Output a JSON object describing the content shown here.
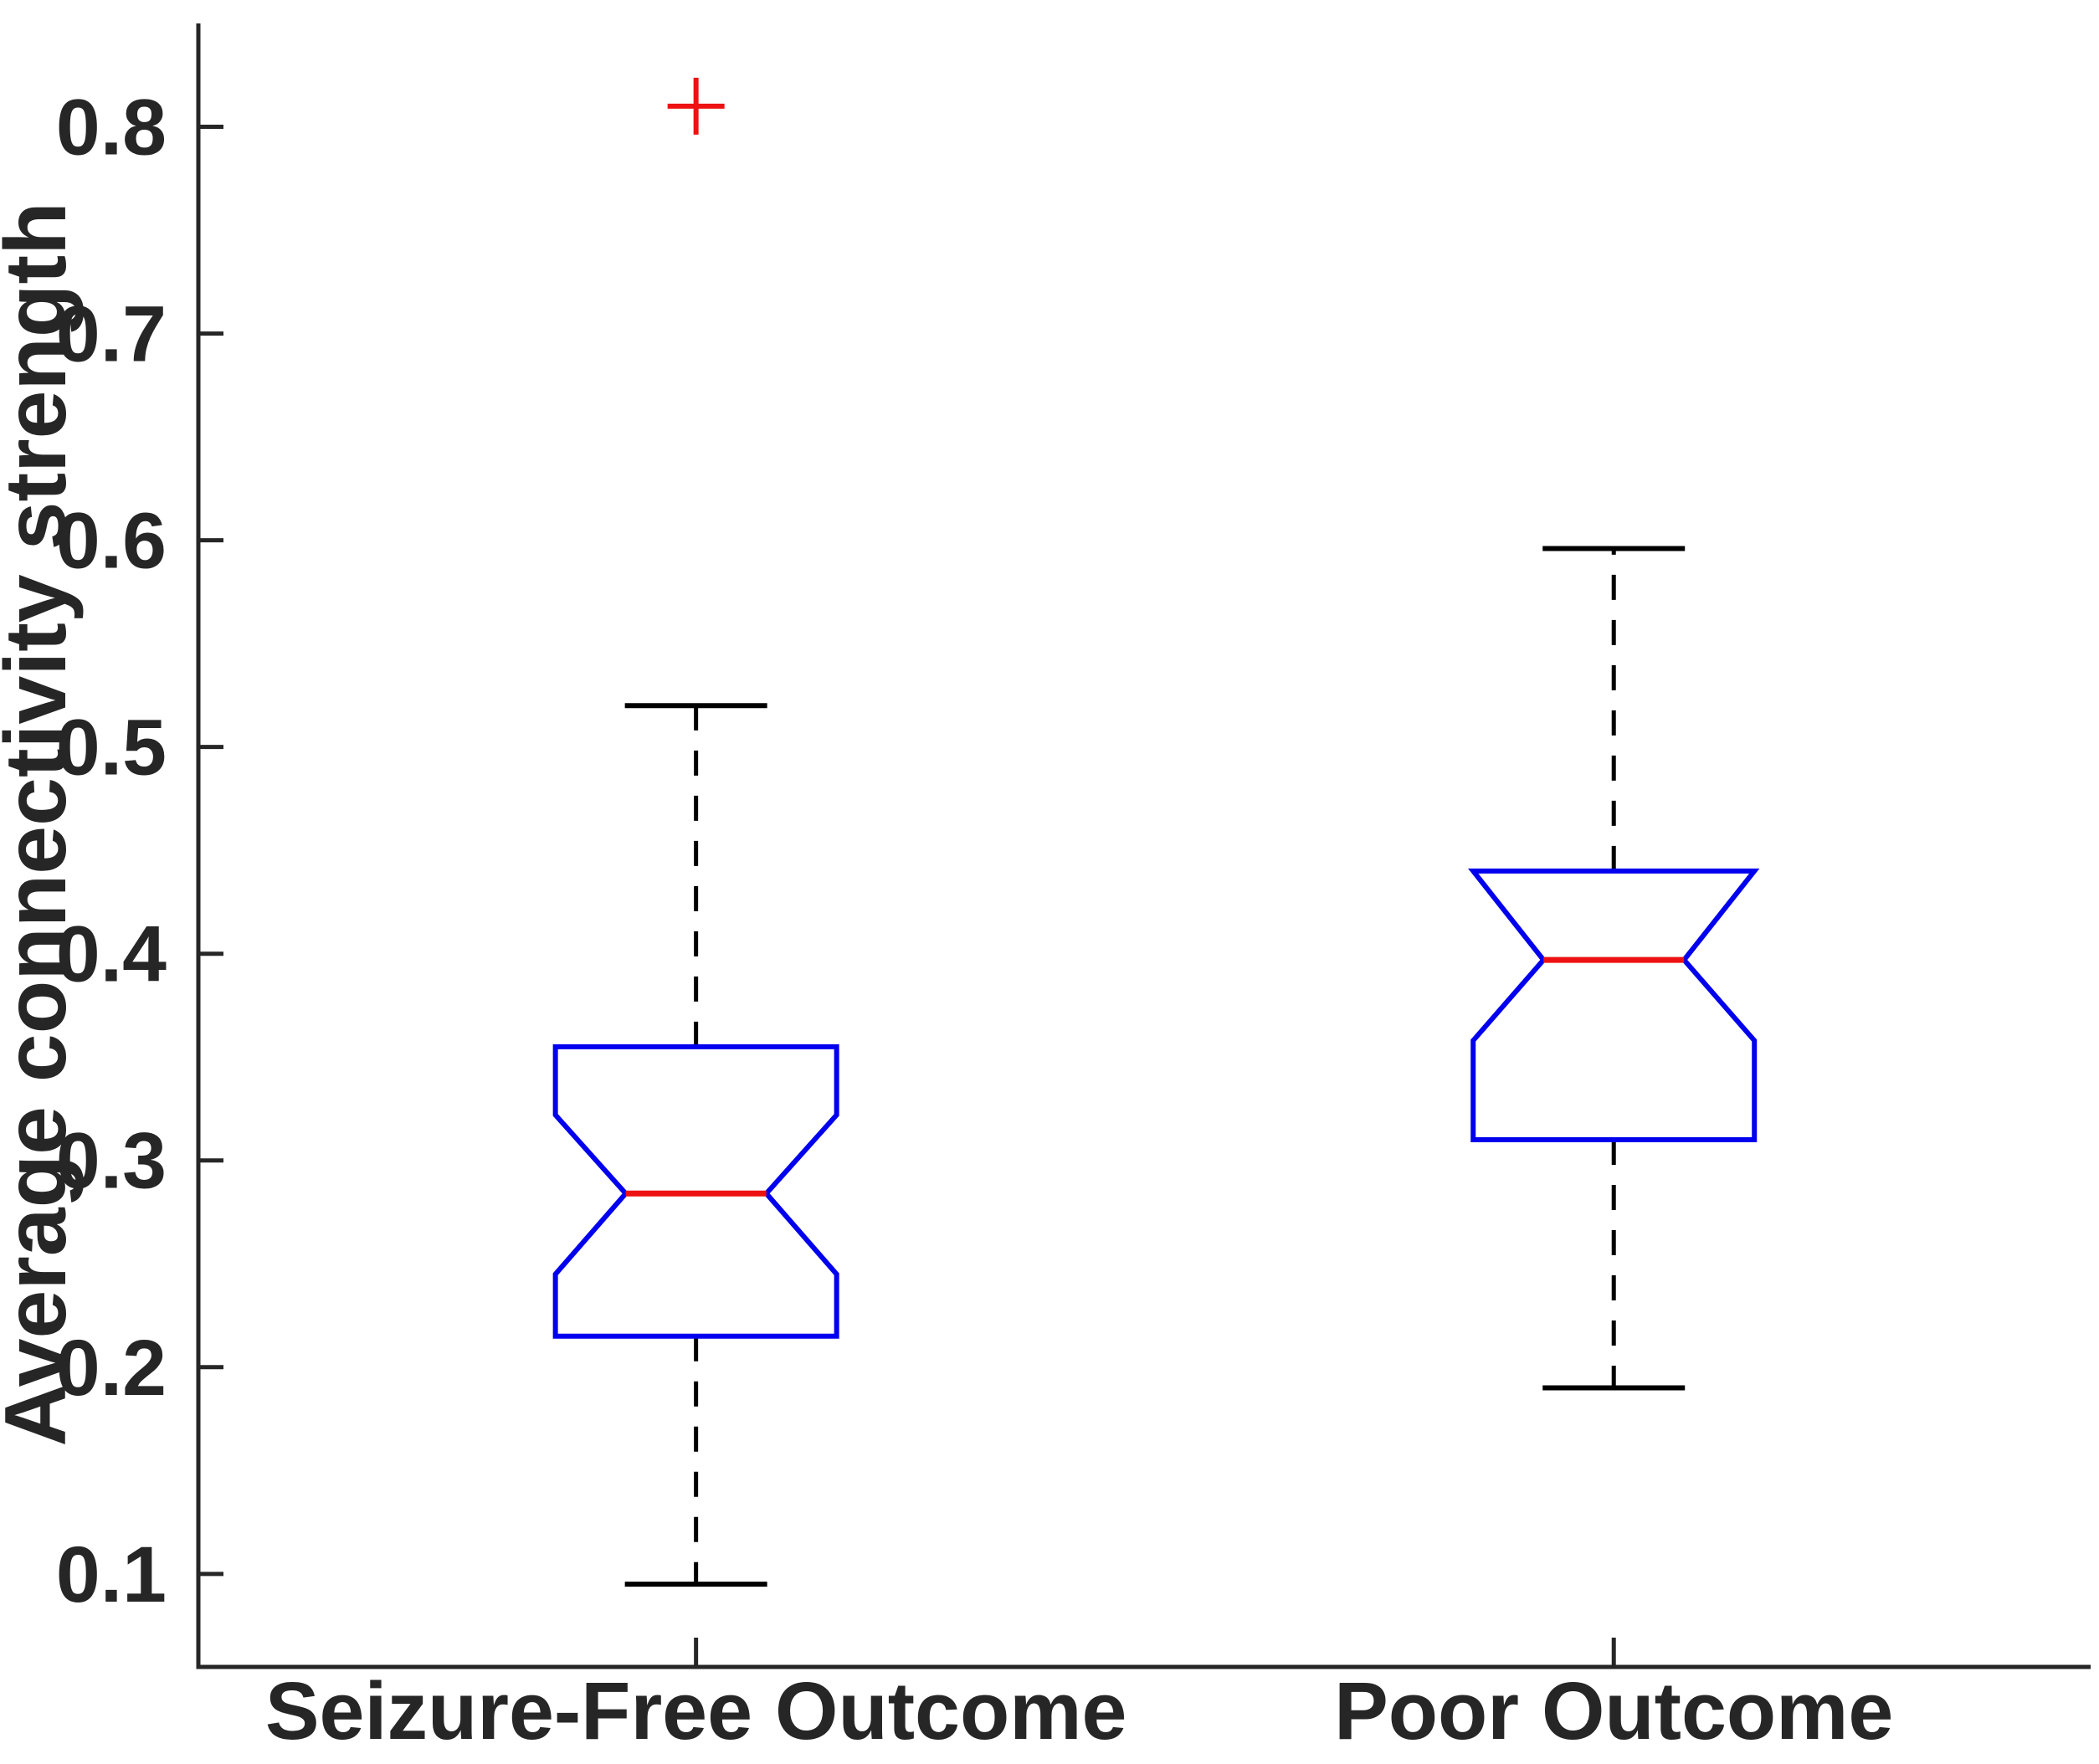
{
  "figure": {
    "background": "#ffffff",
    "axis_color": "#262626",
    "box_color": "#0000ee",
    "median_color": "#ee1111",
    "whisker_color": "#000000",
    "outlier_color": "#ee1111",
    "outlier_marker": "plus"
  },
  "chart_data": {
    "type": "boxplot",
    "title": "",
    "xlabel": "",
    "ylabel": "Average connectivity strength",
    "notched": true,
    "grid": false,
    "legend": null,
    "ylim": [
      0.055,
      0.85
    ],
    "yticks": [
      0.8,
      0.7,
      0.6,
      0.5,
      0.4,
      0.3,
      0.2,
      0.1
    ],
    "ytick_labels": [
      "0.8",
      "0.7",
      "0.6",
      "0.5",
      "0.4",
      "0.3",
      "0.2",
      "0.1"
    ],
    "categories": [
      "Seizure-Free Outcome",
      "Poor Outcome"
    ],
    "series": [
      {
        "label": "Seizure-Free Outcome",
        "whisker_low": 0.095,
        "q1": 0.215,
        "median": 0.284,
        "q3": 0.355,
        "whisker_high": 0.52,
        "notch_low": 0.245,
        "notch_high": 0.322,
        "outliers": [
          0.81
        ]
      },
      {
        "label": "Poor Outcome",
        "whisker_low": 0.19,
        "q1": 0.31,
        "median": 0.397,
        "q3": 0.44,
        "whisker_high": 0.596,
        "notch_low": 0.358,
        "notch_high": 0.44,
        "outliers": []
      }
    ]
  }
}
